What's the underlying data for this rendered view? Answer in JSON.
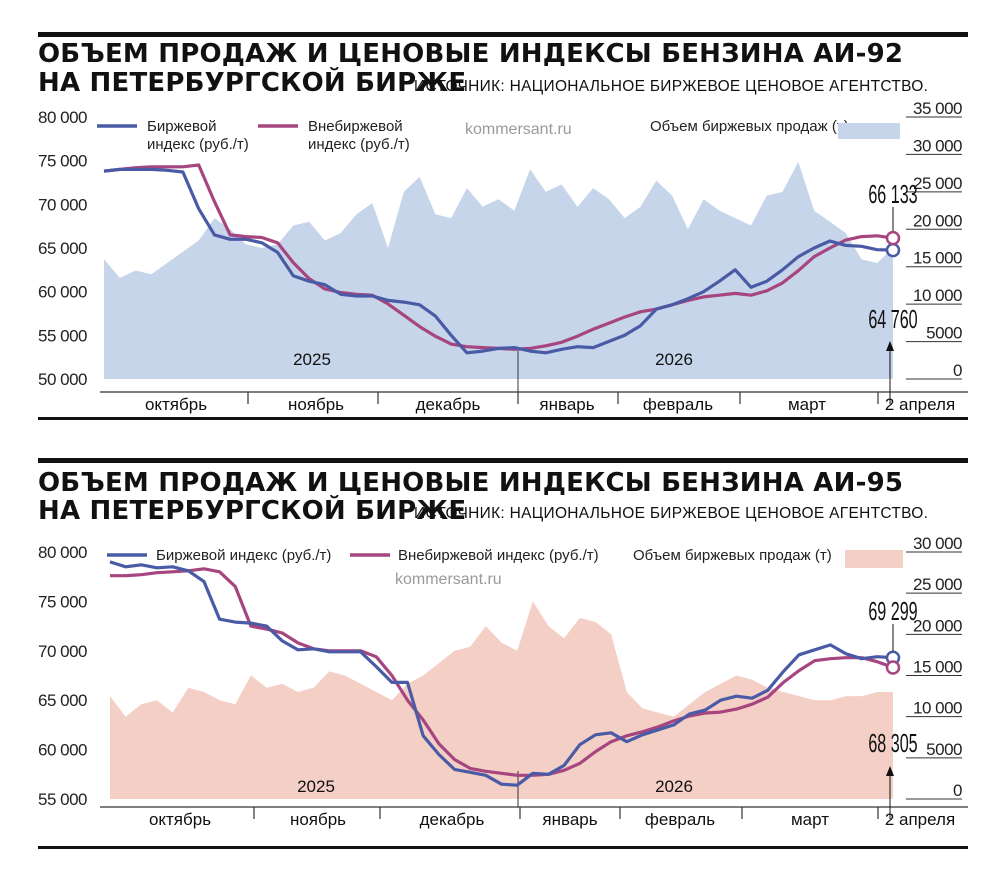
{
  "charts": [
    {
      "title_line1": "ОБЪЕМ ПРОДАЖ И ЦЕНОВЫЕ ИНДЕКСЫ БЕНЗИНА АИ-92",
      "title_line2": "НА ПЕТЕРБУРГСКОЙ БИРЖЕ",
      "source": "ИСТОЧНИК: НАЦИОНАЛЬНОЕ БИРЖЕВОЕ ЦЕНОВОЕ АГЕНТСТВО.",
      "watermark": "kommersant.ru",
      "colors": {
        "exchange": "#4a5ba6",
        "otc": "#a6457f",
        "volume": "#c6d5ea"
      },
      "chart_data": {
        "type": "line",
        "title": "Объем продаж и ценовые индексы бензина АИ-92 на Петербургской бирже",
        "legend": {
          "exchange": "Биржевой индекс (руб./т)",
          "otc": "Внебиржевой индекс (руб./т)",
          "volume": "Объем биржевых продаж (т)"
        },
        "y_left": {
          "min": 50000,
          "max": 80000,
          "ticks": [
            80000,
            75000,
            70000,
            65000,
            60000,
            55000,
            50000
          ],
          "tick_labels": [
            "80 000",
            "75 000",
            "70 000",
            "65 000",
            "60 000",
            "55 000",
            "50 000"
          ]
        },
        "y_right": {
          "min": 0,
          "max": 35000,
          "ticks": [
            35000,
            30000,
            25000,
            20000,
            15000,
            10000,
            5000,
            0
          ],
          "tick_labels": [
            "35 000",
            "30 000",
            "25 000",
            "20 000",
            "15 000",
            "10 000",
            "5000",
            "0"
          ]
        },
        "x_labels": [
          "октябрь",
          "ноябрь",
          "декабрь",
          "январь",
          "февраль",
          "март",
          "2 апреля"
        ],
        "year_labels": [
          "2025",
          "2026"
        ],
        "final_labels": {
          "upper": "66 133",
          "lower": "64 760"
        },
        "series": [
          {
            "name": "Биржевой индекс (руб./т)",
            "key": "exchange",
            "values": [
              73800,
              74000,
              74000,
              74000,
              73900,
              73700,
              69500,
              66500,
              66000,
              66000,
              65600,
              64500,
              61800,
              61200,
              60800,
              59700,
              59500,
              59500,
              59000,
              58800,
              58500,
              57200,
              55000,
              53000,
              53200,
              53500,
              53600,
              53200,
              53000,
              53400,
              53700,
              53600,
              54300,
              55000,
              56100,
              58000,
              58500,
              59200,
              60000,
              61200,
              62500,
              60500,
              61200,
              62500,
              64000,
              65000,
              65800,
              65300,
              65200,
              64800,
              64760
            ]
          },
          {
            "name": "Внебиржевой индекс (руб./т)",
            "key": "otc",
            "values": [
              73800,
              74000,
              74200,
              74300,
              74300,
              74300,
              74500,
              70300,
              66500,
              66300,
              66200,
              65600,
              63300,
              61500,
              60300,
              59900,
              59700,
              59600,
              58600,
              57300,
              56000,
              54900,
              54000,
              53700,
              53600,
              53500,
              53400,
              53500,
              53800,
              54200,
              54900,
              55700,
              56400,
              57100,
              57700,
              58000,
              58500,
              59000,
              59400,
              59600,
              59800,
              59600,
              60100,
              61000,
              62400,
              64000,
              65000,
              65900,
              66300,
              66400,
              66133
            ]
          },
          {
            "name": "Объем биржевых продаж (т)",
            "key": "volume",
            "values": [
              16000,
              13500,
              14500,
              14000,
              15500,
              17000,
              18500,
              21500,
              20000,
              18000,
              17500,
              18000,
              20500,
              21000,
              18500,
              19500,
              22000,
              23500,
              17500,
              25000,
              27000,
              22000,
              21500,
              25500,
              23000,
              24000,
              22500,
              28000,
              25000,
              26000,
              23000,
              25500,
              24000,
              21500,
              23000,
              26500,
              24500,
              20000,
              24000,
              22500,
              21500,
              20500,
              24500,
              25000,
              29000,
              22500,
              21000,
              19500,
              16000,
              15500,
              17500
            ]
          }
        ]
      }
    },
    {
      "title_line1": "ОБЪЕМ ПРОДАЖ И ЦЕНОВЫЕ ИНДЕКСЫ БЕНЗИНА АИ-95",
      "title_line2": "НА ПЕТЕРБУРГСКОЙ БИРЖЕ",
      "source": "ИСТОЧНИК: НАЦИОНАЛЬНОЕ БИРЖЕВОЕ ЦЕНОВОЕ АГЕНТСТВО.",
      "watermark": "kommersant.ru",
      "colors": {
        "exchange": "#4a5ba6",
        "otc": "#a6457f",
        "volume": "#f4cfc6"
      },
      "chart_data": {
        "type": "line",
        "title": "Объем продаж и ценовые индексы бензина АИ-95 на Петербургской бирже",
        "legend": {
          "exchange": "Биржевой индекс (руб./т)",
          "otc": "Внебиржевой индекс (руб./т)",
          "volume": "Объем биржевых продаж (т)"
        },
        "y_left": {
          "min": 55000,
          "max": 80000,
          "ticks": [
            80000,
            75000,
            70000,
            65000,
            60000,
            55000
          ],
          "tick_labels": [
            "80 000",
            "75 000",
            "70 000",
            "65 000",
            "60 000",
            "55 000"
          ]
        },
        "y_right": {
          "min": 0,
          "max": 30000,
          "ticks": [
            30000,
            25000,
            20000,
            15000,
            10000,
            5000,
            0
          ],
          "tick_labels": [
            "30 000",
            "25 000",
            "20 000",
            "15 000",
            "10 000",
            "5000",
            "0"
          ]
        },
        "x_labels": [
          "октябрь",
          "ноябрь",
          "декабрь",
          "январь",
          "февраль",
          "март",
          "2 апреля"
        ],
        "year_labels": [
          "2025",
          "2026"
        ],
        "final_labels": {
          "upper": "69 299",
          "lower": "68 305"
        },
        "series": [
          {
            "name": "Биржевой индекс (руб./т)",
            "key": "exchange",
            "values": [
              79000,
              78500,
              78700,
              78400,
              78500,
              78100,
              77000,
              73200,
              72900,
              72800,
              72500,
              71000,
              70100,
              70200,
              69900,
              69900,
              69900,
              68400,
              66800,
              66800,
              61400,
              59500,
              58000,
              57700,
              57400,
              56500,
              56400,
              57600,
              57500,
              58400,
              60500,
              61500,
              61700,
              60800,
              61500,
              62000,
              62500,
              63600,
              64000,
              65000,
              65400,
              65200,
              66000,
              67900,
              69600,
              70100,
              70600,
              69700,
              69200,
              69400,
              69299
            ]
          },
          {
            "name": "Внебиржевой индекс (руб./т)",
            "key": "otc",
            "values": [
              77600,
              77600,
              77700,
              77900,
              78000,
              78100,
              78300,
              78000,
              76500,
              72500,
              72200,
              71800,
              70800,
              70200,
              70000,
              70000,
              70000,
              69400,
              67500,
              65000,
              63000,
              60600,
              59000,
              58100,
              57800,
              57600,
              57400,
              57400,
              57500,
              57900,
              58600,
              59800,
              60800,
              61400,
              61800,
              62300,
              62900,
              63400,
              63700,
              63800,
              64100,
              64600,
              65300,
              66800,
              68000,
              69000,
              69200,
              69300,
              69300,
              68900,
              68305
            ]
          },
          {
            "name": "Объем биржевых продаж (т)",
            "key": "volume",
            "values": [
              12500,
              10000,
              11500,
              12000,
              10500,
              13500,
              13000,
              12000,
              11500,
              15000,
              13500,
              14000,
              13000,
              13500,
              15500,
              15000,
              14000,
              13000,
              12000,
              14000,
              15000,
              16500,
              18000,
              18500,
              21000,
              19000,
              18000,
              24000,
              21000,
              19500,
              22000,
              21500,
              20000,
              13000,
              11000,
              10500,
              10000,
              11500,
              13000,
              14000,
              15000,
              14500,
              13500,
              13000,
              12500,
              12000,
              12000,
              12500,
              12500,
              13000,
              13000
            ]
          }
        ]
      }
    }
  ]
}
